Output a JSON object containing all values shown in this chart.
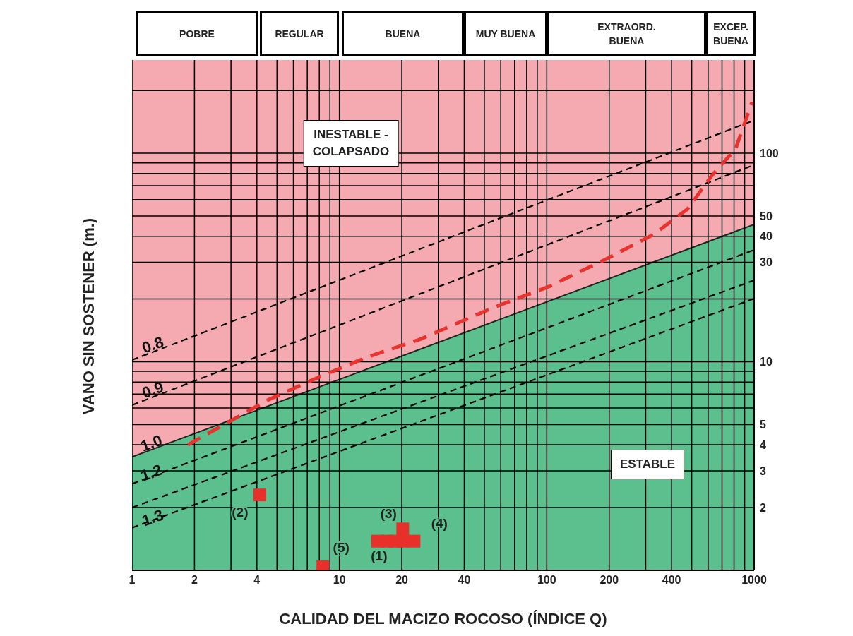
{
  "chart_data": {
    "type": "line",
    "xlabel": "CALIDAD DEL MACIZO ROCOSO (ÍNDICE Q)",
    "ylabel": "VANO SIN SOSTENER (m.)",
    "log": "xy",
    "grid": true,
    "xlim": [
      1,
      1000
    ],
    "ylim": [
      1,
      280
    ],
    "xticks": [
      1,
      2,
      {
        "value": 3,
        "label": null
      },
      4,
      {
        "value": 5,
        "label": null
      },
      {
        "value": 6,
        "label": null
      },
      {
        "value": 7,
        "label": null
      },
      {
        "value": 8,
        "label": null
      },
      {
        "value": 9,
        "label": null
      },
      10,
      20,
      {
        "value": 30,
        "label": null
      },
      40,
      {
        "value": 50,
        "label": null
      },
      {
        "value": 60,
        "label": null
      },
      {
        "value": 70,
        "label": null
      },
      {
        "value": 80,
        "label": null
      },
      {
        "value": 90,
        "label": null
      },
      100,
      200,
      {
        "value": 300,
        "label": null
      },
      400,
      {
        "value": 500,
        "label": null
      },
      {
        "value": 600,
        "label": null
      },
      {
        "value": 700,
        "label": null
      },
      {
        "value": 800,
        "label": null
      },
      {
        "value": 900,
        "label": null
      },
      1000
    ],
    "yticks": [
      2,
      3,
      4,
      5,
      {
        "value": 6,
        "label": null
      },
      {
        "value": 7,
        "label": null
      },
      {
        "value": 8,
        "label": null
      },
      {
        "value": 9,
        "label": null
      },
      10,
      {
        "value": 20,
        "label": null
      },
      30,
      40,
      50,
      {
        "value": 60,
        "label": null
      },
      {
        "value": 70,
        "label": null
      },
      {
        "value": 80,
        "label": null
      },
      {
        "value": 90,
        "label": null
      },
      100,
      {
        "value": 200,
        "label": null
      }
    ],
    "bands": [
      {
        "axis": "y",
        "from": 1,
        "to": 280,
        "color": "#f4aab0"
      }
    ],
    "series": [
      {
        "name": "1.0",
        "type": "area",
        "color": "#5cbf8e",
        "x": [
          1,
          1000
        ],
        "values": [
          3.5,
          45.6
        ]
      },
      {
        "name": "0.8",
        "color": "#000000",
        "line_style": "dashed",
        "x": [
          1,
          1000
        ],
        "values": [
          10.2,
          144
        ]
      },
      {
        "name": "0.9",
        "color": "#000000",
        "line_style": "dashed",
        "x": [
          1,
          1000
        ],
        "values": [
          6.2,
          88
        ]
      },
      {
        "name": "1.2",
        "color": "#000000",
        "line_style": "dashed",
        "x": [
          1,
          1000
        ],
        "values": [
          2.6,
          34.4
        ]
      },
      {
        "name": "1.3",
        "color": "#000000",
        "line_style": "dashed",
        "x": [
          1,
          1000
        ],
        "values": [
          2.0,
          24.6
        ]
      },
      {
        "color": "#000000",
        "line_style": "dashed",
        "x": [
          1,
          1000
        ],
        "values": [
          1.6,
          20.1
        ]
      },
      {
        "color": "#e8332e",
        "line_style": "dashed",
        "x": [
          1.86,
          4.58,
          7.86,
          13.5,
          24.4,
          54.5,
          103,
          192,
          330,
          477,
          624,
          814,
          977
        ],
        "values": [
          4.0,
          6.6,
          8.4,
          10.5,
          12.8,
          18.1,
          23,
          31,
          41,
          54,
          78,
          105,
          176
        ]
      },
      {
        "type": "scatter",
        "color": "#e8302a",
        "marker": "square",
        "x": [
          4.13,
          8.32,
          15.3,
          17,
          18.5,
          20.2,
          20.2,
          22.9
        ],
        "values": [
          2.3,
          1.04,
          1.38,
          1.38,
          1.38,
          1.58,
          1.38,
          1.38
        ]
      }
    ],
    "annotations": [
      {
        "text": "(1)",
        "x": 15.3,
        "y": 1.38
      },
      {
        "text": "(2)",
        "x": 4.13,
        "y": 2.3
      },
      {
        "text": "(3)",
        "x": 20.2,
        "y": 1.58
      },
      {
        "text": "(4)",
        "x": 22.9,
        "y": 1.38
      },
      {
        "text": "(5)",
        "x": 8.32,
        "y": 1.04
      },
      "INESTABLE - COLAPSADO",
      "ESTABLE",
      "POBRE",
      "REGULAR",
      "BUENA",
      "MUY BUENA",
      "EXTRAORD. BUENA",
      "EXCEP. BUENA"
    ]
  }
}
